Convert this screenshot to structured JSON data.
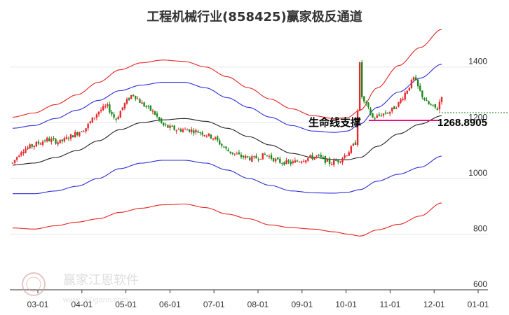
{
  "chart_data": {
    "type": "candlestick",
    "title": "工程机械行业(858425)赢家极反通道",
    "x_ticks": [
      "03-01",
      "04-01",
      "05-01",
      "06-01",
      "07-01",
      "08-01",
      "09-01",
      "10-01",
      "11-01",
      "12-01",
      "01-01"
    ],
    "y_ticks": [
      "600",
      "800",
      "1000",
      "1200",
      "1400"
    ],
    "ylim": [
      600,
      1540
    ],
    "grid": true,
    "annotation": "生命线支撑",
    "last_price": "1268.8905",
    "up_color": "#e8272b",
    "down_color": "#1a8a1a",
    "channel": {
      "outer_color": "#e62424",
      "inner_color": "#2f2fd9",
      "middle_color": "#222222",
      "middle": [
        [
          0,
          1048
        ],
        [
          0.05,
          1055
        ],
        [
          0.1,
          1075
        ],
        [
          0.15,
          1100
        ],
        [
          0.2,
          1135
        ],
        [
          0.25,
          1175
        ],
        [
          0.3,
          1200
        ],
        [
          0.35,
          1210
        ],
        [
          0.4,
          1215
        ],
        [
          0.45,
          1205
        ],
        [
          0.5,
          1180
        ],
        [
          0.55,
          1150
        ],
        [
          0.6,
          1120
        ],
        [
          0.65,
          1090
        ],
        [
          0.7,
          1075
        ],
        [
          0.75,
          1068
        ],
        [
          0.78,
          1067
        ],
        [
          0.81,
          1075
        ],
        [
          0.85,
          1115
        ],
        [
          0.9,
          1160
        ],
        [
          0.95,
          1195
        ],
        [
          1.0,
          1225
        ]
      ],
      "inner_upper": [
        [
          0,
          1180
        ],
        [
          0.05,
          1190
        ],
        [
          0.1,
          1215
        ],
        [
          0.15,
          1245
        ],
        [
          0.2,
          1280
        ],
        [
          0.25,
          1315
        ],
        [
          0.3,
          1335
        ],
        [
          0.35,
          1345
        ],
        [
          0.4,
          1345
        ],
        [
          0.45,
          1325
        ],
        [
          0.5,
          1290
        ],
        [
          0.55,
          1255
        ],
        [
          0.6,
          1220
        ],
        [
          0.65,
          1190
        ],
        [
          0.7,
          1170
        ],
        [
          0.75,
          1165
        ],
        [
          0.78,
          1170
        ],
        [
          0.81,
          1195
        ],
        [
          0.85,
          1255
        ],
        [
          0.9,
          1310
        ],
        [
          0.95,
          1360
        ],
        [
          1.0,
          1410
        ]
      ],
      "inner_lower": [
        [
          0,
          945
        ],
        [
          0.05,
          945
        ],
        [
          0.1,
          955
        ],
        [
          0.15,
          972
        ],
        [
          0.2,
          1000
        ],
        [
          0.25,
          1035
        ],
        [
          0.3,
          1055
        ],
        [
          0.35,
          1065
        ],
        [
          0.4,
          1065
        ],
        [
          0.45,
          1055
        ],
        [
          0.5,
          1030
        ],
        [
          0.55,
          1000
        ],
        [
          0.6,
          975
        ],
        [
          0.65,
          955
        ],
        [
          0.7,
          948
        ],
        [
          0.75,
          947
        ],
        [
          0.78,
          950
        ],
        [
          0.81,
          960
        ],
        [
          0.85,
          990
        ],
        [
          0.9,
          1015
        ],
        [
          0.95,
          1040
        ],
        [
          1.0,
          1080
        ]
      ],
      "outer_upper": [
        [
          0,
          1220
        ],
        [
          0.05,
          1235
        ],
        [
          0.1,
          1265
        ],
        [
          0.15,
          1300
        ],
        [
          0.2,
          1345
        ],
        [
          0.25,
          1390
        ],
        [
          0.3,
          1415
        ],
        [
          0.35,
          1425
        ],
        [
          0.4,
          1420
        ],
        [
          0.45,
          1400
        ],
        [
          0.5,
          1365
        ],
        [
          0.55,
          1325
        ],
        [
          0.6,
          1285
        ],
        [
          0.65,
          1250
        ],
        [
          0.7,
          1225
        ],
        [
          0.75,
          1215
        ],
        [
          0.78,
          1218
        ],
        [
          0.81,
          1245
        ],
        [
          0.85,
          1325
        ],
        [
          0.9,
          1405
        ],
        [
          0.95,
          1470
        ],
        [
          1.0,
          1535
        ]
      ],
      "outer_lower": [
        [
          0,
          822
        ],
        [
          0.05,
          818
        ],
        [
          0.1,
          830
        ],
        [
          0.15,
          843
        ],
        [
          0.2,
          855
        ],
        [
          0.25,
          878
        ],
        [
          0.3,
          893
        ],
        [
          0.35,
          905
        ],
        [
          0.4,
          908
        ],
        [
          0.45,
          895
        ],
        [
          0.5,
          872
        ],
        [
          0.55,
          855
        ],
        [
          0.6,
          833
        ],
        [
          0.65,
          823
        ],
        [
          0.7,
          818
        ],
        [
          0.75,
          808
        ],
        [
          0.78,
          800
        ],
        [
          0.81,
          793
        ],
        [
          0.85,
          815
        ],
        [
          0.9,
          835
        ],
        [
          0.95,
          865
        ],
        [
          1.0,
          912
        ]
      ]
    },
    "price_series": [
      [
        0,
        1055
      ],
      [
        0.02,
        1100
      ],
      [
        0.05,
        1120
      ],
      [
        0.08,
        1140
      ],
      [
        0.11,
        1130
      ],
      [
        0.14,
        1155
      ],
      [
        0.17,
        1180
      ],
      [
        0.2,
        1240
      ],
      [
        0.22,
        1260
      ],
      [
        0.24,
        1210
      ],
      [
        0.26,
        1265
      ],
      [
        0.28,
        1305
      ],
      [
        0.3,
        1270
      ],
      [
        0.33,
        1235
      ],
      [
        0.35,
        1190
      ],
      [
        0.38,
        1175
      ],
      [
        0.41,
        1175
      ],
      [
        0.44,
        1165
      ],
      [
        0.47,
        1145
      ],
      [
        0.5,
        1100
      ],
      [
        0.53,
        1080
      ],
      [
        0.56,
        1070
      ],
      [
        0.59,
        1085
      ],
      [
        0.62,
        1060
      ],
      [
        0.65,
        1055
      ],
      [
        0.68,
        1070
      ],
      [
        0.71,
        1080
      ],
      [
        0.74,
        1055
      ],
      [
        0.76,
        1065
      ],
      [
        0.78,
        1090
      ],
      [
        0.8,
        1130
      ],
      [
        0.805,
        1280
      ],
      [
        0.81,
        1440
      ],
      [
        0.815,
        1260
      ],
      [
        0.82,
        1275
      ],
      [
        0.84,
        1215
      ],
      [
        0.86,
        1230
      ],
      [
        0.88,
        1240
      ],
      [
        0.9,
        1270
      ],
      [
        0.92,
        1320
      ],
      [
        0.935,
        1360
      ],
      [
        0.95,
        1310
      ],
      [
        0.965,
        1270
      ],
      [
        0.98,
        1255
      ],
      [
        0.99,
        1250
      ],
      [
        1.0,
        1300
      ]
    ]
  },
  "watermark": {
    "logo_text": "赢家江恩软件",
    "url": "www.360gann.com"
  }
}
